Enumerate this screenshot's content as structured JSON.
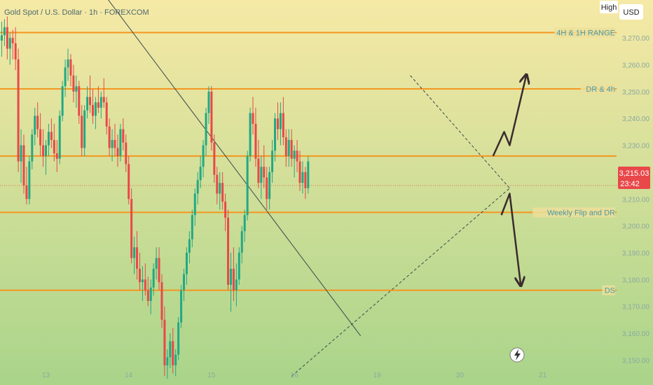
{
  "header": {
    "symbol_line": "Gold Spot / U.S. Dollar · 1h · FOREXCOM",
    "scale_mode_label": "High",
    "currency_label": "USD"
  },
  "price_badge": {
    "price": "3,215.03",
    "countdown": "23:42"
  },
  "flash_icon": "lightning-icon",
  "colors": {
    "bg_top": "#f6e9a6",
    "bg_bottom": "#a9d48a",
    "up": "#22a884",
    "down": "#e8484a",
    "level": "#f5961f",
    "level_label": "#4a9aa8",
    "arrow": "#3a2c2e",
    "badge": "#e8484a"
  },
  "chart_data": {
    "type": "candlestick",
    "ylim": [
      3142,
      3281
    ],
    "y_ticks": [
      3150,
      3160,
      3170,
      3180,
      3190,
      3200,
      3210,
      3220,
      3230,
      3240,
      3250,
      3260,
      3270
    ],
    "y_tick_labels": [
      "3,150.00",
      "3,160.00",
      "3,170.00",
      "3,180.00",
      "3,190.00",
      "3,200.00",
      "3,210.00",
      "3,220.00",
      "3,230.00",
      "3,240.00",
      "3,250.00",
      "3,260.00",
      "3,270.00"
    ],
    "x_tick_labels": [
      {
        "label": "13",
        "bar": 16
      },
      {
        "label": "14",
        "bar": 46
      },
      {
        "label": "15",
        "bar": 76
      },
      {
        "label": "16",
        "bar": 106
      },
      {
        "label": "19",
        "bar": 136
      },
      {
        "label": "20",
        "bar": 166
      },
      {
        "label": "21",
        "bar": 196
      }
    ],
    "horizontal_levels": [
      {
        "price": 3272,
        "label": "4H & 1H RANGE"
      },
      {
        "price": 3251,
        "label": "DR & 4h"
      },
      {
        "price": 3226,
        "label": ""
      },
      {
        "price": 3205,
        "label": "Weekly Flip and DR"
      },
      {
        "price": 3176,
        "label": "DS"
      }
    ],
    "close_line": 3215.03,
    "trendlines": [
      {
        "style": "solid",
        "points": [
          [
            38,
            3285
          ],
          [
            130,
            3159
          ]
        ]
      },
      {
        "style": "dashed",
        "points": [
          [
            105,
            3144
          ],
          [
            184,
            3214
          ]
        ]
      },
      {
        "style": "dashed",
        "points": [
          [
            148,
            3256
          ],
          [
            184,
            3214
          ]
        ]
      }
    ],
    "projection_arrows": [
      {
        "direction": "up",
        "points": [
          [
            178,
            3226
          ],
          [
            182,
            3235
          ],
          [
            184,
            3230
          ],
          [
            190,
            3256
          ]
        ]
      },
      {
        "direction": "down",
        "points": [
          [
            181,
            3204
          ],
          [
            184,
            3212
          ],
          [
            188,
            3178
          ]
        ]
      }
    ],
    "ohlc": [
      [
        3269,
        3276,
        3263,
        3271
      ],
      [
        3271,
        3277,
        3267,
        3274
      ],
      [
        3274,
        3278,
        3262,
        3266
      ],
      [
        3266,
        3272,
        3260,
        3270
      ],
      [
        3270,
        3273,
        3262,
        3268
      ],
      [
        3268,
        3274,
        3258,
        3262
      ],
      [
        3262,
        3266,
        3220,
        3224
      ],
      [
        3224,
        3236,
        3216,
        3230
      ],
      [
        3230,
        3234,
        3212,
        3215
      ],
      [
        3215,
        3222,
        3208,
        3210
      ],
      [
        3210,
        3226,
        3208,
        3224
      ],
      [
        3224,
        3236,
        3221,
        3234
      ],
      [
        3234,
        3244,
        3230,
        3241
      ],
      [
        3241,
        3246,
        3233,
        3236
      ],
      [
        3236,
        3242,
        3226,
        3230
      ],
      [
        3230,
        3236,
        3222,
        3226
      ],
      [
        3226,
        3232,
        3219,
        3230
      ],
      [
        3230,
        3238,
        3226,
        3235
      ],
      [
        3235,
        3240,
        3229,
        3232
      ],
      [
        3232,
        3238,
        3224,
        3227
      ],
      [
        3227,
        3232,
        3220,
        3225
      ],
      [
        3225,
        3243,
        3223,
        3241
      ],
      [
        3241,
        3254,
        3239,
        3252
      ],
      [
        3252,
        3262,
        3248,
        3259
      ],
      [
        3259,
        3266,
        3254,
        3262
      ],
      [
        3262,
        3264,
        3252,
        3256
      ],
      [
        3256,
        3260,
        3246,
        3250
      ],
      [
        3250,
        3256,
        3244,
        3252
      ],
      [
        3252,
        3254,
        3238,
        3241
      ],
      [
        3241,
        3245,
        3226,
        3229
      ],
      [
        3229,
        3245,
        3226,
        3243
      ],
      [
        3243,
        3252,
        3240,
        3248
      ],
      [
        3248,
        3256,
        3242,
        3245
      ],
      [
        3245,
        3251,
        3238,
        3241
      ],
      [
        3241,
        3248,
        3236,
        3246
      ],
      [
        3246,
        3252,
        3242,
        3244
      ],
      [
        3244,
        3250,
        3240,
        3248
      ],
      [
        3248,
        3255,
        3244,
        3246
      ],
      [
        3246,
        3248,
        3234,
        3237
      ],
      [
        3237,
        3240,
        3226,
        3229
      ],
      [
        3229,
        3236,
        3224,
        3232
      ],
      [
        3232,
        3238,
        3226,
        3229
      ],
      [
        3229,
        3234,
        3222,
        3226
      ],
      [
        3226,
        3238,
        3224,
        3236
      ],
      [
        3236,
        3240,
        3228,
        3231
      ],
      [
        3231,
        3234,
        3220,
        3223
      ],
      [
        3223,
        3226,
        3208,
        3210
      ],
      [
        3210,
        3214,
        3186,
        3188
      ],
      [
        3188,
        3196,
        3182,
        3192
      ],
      [
        3192,
        3198,
        3180,
        3184
      ],
      [
        3184,
        3190,
        3176,
        3179
      ],
      [
        3179,
        3185,
        3172,
        3180
      ],
      [
        3180,
        3186,
        3174,
        3176
      ],
      [
        3176,
        3181,
        3170,
        3172
      ],
      [
        3172,
        3180,
        3167,
        3177
      ],
      [
        3177,
        3186,
        3174,
        3184
      ],
      [
        3184,
        3192,
        3180,
        3188
      ],
      [
        3188,
        3192,
        3176,
        3179
      ],
      [
        3179,
        3182,
        3162,
        3165
      ],
      [
        3165,
        3170,
        3144,
        3148
      ],
      [
        3148,
        3154,
        3143,
        3151
      ],
      [
        3151,
        3160,
        3147,
        3157
      ],
      [
        3157,
        3162,
        3145,
        3148
      ],
      [
        3148,
        3154,
        3144,
        3152
      ],
      [
        3152,
        3166,
        3150,
        3164
      ],
      [
        3164,
        3178,
        3162,
        3176
      ],
      [
        3176,
        3184,
        3172,
        3182
      ],
      [
        3182,
        3192,
        3178,
        3190
      ],
      [
        3190,
        3198,
        3186,
        3195
      ],
      [
        3195,
        3206,
        3192,
        3204
      ],
      [
        3204,
        3214,
        3200,
        3212
      ],
      [
        3212,
        3220,
        3208,
        3217
      ],
      [
        3217,
        3226,
        3214,
        3222
      ],
      [
        3222,
        3232,
        3218,
        3230
      ],
      [
        3230,
        3244,
        3226,
        3242
      ],
      [
        3242,
        3252,
        3238,
        3250
      ],
      [
        3250,
        3252,
        3228,
        3231
      ],
      [
        3231,
        3234,
        3216,
        3219
      ],
      [
        3219,
        3222,
        3208,
        3212
      ],
      [
        3212,
        3220,
        3206,
        3216
      ],
      [
        3216,
        3220,
        3206,
        3209
      ],
      [
        3209,
        3212,
        3198,
        3203
      ],
      [
        3203,
        3206,
        3176,
        3178
      ],
      [
        3178,
        3190,
        3168,
        3184
      ],
      [
        3184,
        3192,
        3172,
        3176
      ],
      [
        3176,
        3186,
        3170,
        3180
      ],
      [
        3180,
        3192,
        3178,
        3190
      ],
      [
        3190,
        3200,
        3186,
        3198
      ],
      [
        3198,
        3206,
        3194,
        3204
      ],
      [
        3204,
        3228,
        3202,
        3226
      ],
      [
        3226,
        3244,
        3224,
        3242
      ],
      [
        3242,
        3248,
        3234,
        3238
      ],
      [
        3238,
        3244,
        3222,
        3225
      ],
      [
        3225,
        3232,
        3214,
        3216
      ],
      [
        3216,
        3226,
        3210,
        3222
      ],
      [
        3222,
        3230,
        3214,
        3218
      ],
      [
        3218,
        3222,
        3206,
        3210
      ],
      [
        3210,
        3222,
        3206,
        3220
      ],
      [
        3220,
        3232,
        3216,
        3228
      ],
      [
        3228,
        3242,
        3224,
        3240
      ],
      [
        3240,
        3246,
        3232,
        3236
      ],
      [
        3236,
        3246,
        3230,
        3242
      ],
      [
        3242,
        3248,
        3230,
        3233
      ],
      [
        3233,
        3236,
        3222,
        3226
      ],
      [
        3226,
        3236,
        3222,
        3232
      ],
      [
        3232,
        3236,
        3222,
        3225
      ],
      [
        3225,
        3230,
        3218,
        3228
      ],
      [
        3228,
        3232,
        3220,
        3224
      ],
      [
        3224,
        3228,
        3213,
        3216
      ],
      [
        3216,
        3224,
        3212,
        3220
      ],
      [
        3220,
        3222,
        3210,
        3214
      ],
      [
        3214,
        3226,
        3212,
        3224
      ]
    ]
  }
}
